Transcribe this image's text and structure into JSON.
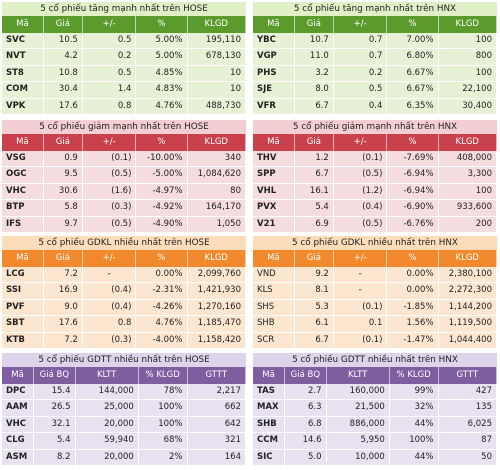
{
  "sections": [
    {
      "key": "hose_gain",
      "title": "5 cổ phiếu tăng mạnh nhất trên HOSE",
      "headers": [
        "Mã",
        "Giá",
        "+/-",
        "%",
        "KLGD"
      ],
      "rows": [
        [
          "SVC",
          "10.5",
          "0.5",
          "5.00%",
          "195,110"
        ],
        [
          "NVT",
          "4.2",
          "0.2",
          "5.00%",
          "678,130"
        ],
        [
          "ST8",
          "10.8",
          "0.5",
          "4.85%",
          "10"
        ],
        [
          "COM",
          "30.4",
          "1.4",
          "4.83%",
          "10"
        ],
        [
          "VPK",
          "17.6",
          "0.8",
          "4.76%",
          "488,730"
        ]
      ]
    },
    {
      "key": "hnx_gain",
      "title": "5 cổ phiếu tăng mạnh nhất trên HNX",
      "headers": [
        "Mã",
        "Giá",
        "+/-",
        "%",
        "KLGD"
      ],
      "rows": [
        [
          "YBC",
          "10.7",
          "0.7",
          "7.00%",
          "100"
        ],
        [
          "VGP",
          "11.0",
          "0.7",
          "6.80%",
          "800"
        ],
        [
          "PHS",
          "3.2",
          "0.2",
          "6.67%",
          "100"
        ],
        [
          "SJE",
          "8.0",
          "0.5",
          "6.67%",
          "22,100"
        ],
        [
          "VFR",
          "6.7",
          "0.4",
          "6.35%",
          "30,400"
        ]
      ]
    },
    {
      "key": "hose_loss",
      "title": "5 cổ phiếu giảm mạnh nhất trên HOSE",
      "headers": [
        "Mã",
        "Giá",
        "+/-",
        "%",
        "KLGD"
      ],
      "rows": [
        [
          "VSG",
          "0.9",
          "(0.1)",
          "-10.00%",
          "340"
        ],
        [
          "OGC",
          "9.5",
          "(0.5)",
          "-5.00%",
          "1,084,620"
        ],
        [
          "VHC",
          "30.6",
          "(1.6)",
          "-4.97%",
          "80"
        ],
        [
          "BTP",
          "5.8",
          "(0.3)",
          "-4.92%",
          "164,170"
        ],
        [
          "IFS",
          "9.7",
          "(0.5)",
          "-4.90%",
          "1,050"
        ]
      ]
    },
    {
      "key": "hnx_loss",
      "title": "5 cổ phiếu giảm mạnh nhất trên HNX",
      "headers": [
        "Mã",
        "Giá",
        "+/-",
        "%",
        "KLGD"
      ],
      "rows": [
        [
          "THV",
          "1.2",
          "(0.1)",
          "-7.69%",
          "408,000"
        ],
        [
          "SPP",
          "6.7",
          "(0.5)",
          "-6.94%",
          "3,300"
        ],
        [
          "VHL",
          "16.1",
          "(1.2)",
          "-6.94%",
          "100"
        ],
        [
          "PVX",
          "5.4",
          "(0.4)",
          "-6.90%",
          "933,600"
        ],
        [
          "V21",
          "6.9",
          "(0.5)",
          "-6.76%",
          "200"
        ]
      ]
    },
    {
      "key": "hose_vol",
      "title": "5 cổ phiếu GDKL nhiều nhất trên HOSE",
      "headers": [
        "Mã",
        "Giá",
        "+/-",
        "%",
        "KLGD"
      ],
      "rows": [
        [
          "LCG",
          "7.2",
          "-",
          "0.00%",
          "2,099,760"
        ],
        [
          "SSI",
          "16.9",
          "(0.4)",
          "-2.31%",
          "1,421,930"
        ],
        [
          "PVF",
          "9.0",
          "(0.4)",
          "-4.26%",
          "1,270,160"
        ],
        [
          "SBT",
          "17.6",
          "0.8",
          "4.76%",
          "1,185,470"
        ],
        [
          "KTB",
          "7.2",
          "(0.3)",
          "-4.00%",
          "1,158,420"
        ]
      ]
    },
    {
      "key": "hnx_vol",
      "title": "5 cổ phiếu GDKL nhiều nhất trên HNX",
      "headers": [
        "Mã",
        "Giá",
        "+/-",
        "%",
        "KLGD"
      ],
      "rows": [
        [
          "VND",
          "9.2",
          "-",
          "0.00%",
          "2,380,100"
        ],
        [
          "KLS",
          "8.1",
          "-",
          "0.00%",
          "2,272,300"
        ],
        [
          "SHS",
          "5.3",
          "(0.1)",
          "-1.85%",
          "1,144,200"
        ],
        [
          "SHB",
          "6.1",
          "0.1",
          "1.56%",
          "1,119,500"
        ],
        [
          "SCR",
          "6.7",
          "(0.1)",
          "-1.47%",
          "1,044,400"
        ]
      ]
    },
    {
      "key": "hose_val",
      "title": "5 cổ phiếu GDTT nhiều nhất trên HOSE",
      "headers": [
        "Mã",
        "Giá BQ",
        "KLTT",
        "% KLGD",
        "GTTT"
      ],
      "rows": [
        [
          "DPC",
          "15.4",
          "144,000",
          "78%",
          "2,217"
        ],
        [
          "AAM",
          "26.5",
          "25,000",
          "100%",
          "662"
        ],
        [
          "VHC",
          "32.1",
          "20,000",
          "100%",
          "642"
        ],
        [
          "CLG",
          "5.4",
          "59,940",
          "68%",
          "321"
        ],
        [
          "ASM",
          "8.2",
          "20,000",
          "2%",
          "164"
        ]
      ]
    },
    {
      "key": "hnx_val",
      "title": "5 cổ phiếu GDTT nhiều nhất trên HNX",
      "headers": [
        "Mã",
        "Giá BQ",
        "KLTT",
        "% KLGD",
        "GTTT"
      ],
      "rows": [
        [
          "TAS",
          "2.7",
          "160,000",
          "99%",
          "427"
        ],
        [
          "MAX",
          "6.3",
          "21,500",
          "32%",
          "135"
        ],
        [
          "SHB",
          "6.8",
          "886,000",
          "44%",
          "6,025"
        ],
        [
          "CCM",
          "14.6",
          "5,950",
          "100%",
          "87"
        ],
        [
          "SIC",
          "5.0",
          "10,000",
          "44%",
          "50"
        ]
      ]
    }
  ]
}
